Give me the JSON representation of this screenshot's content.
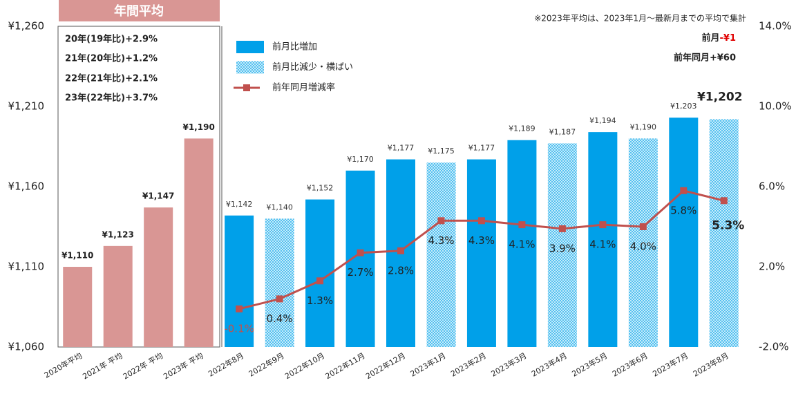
{
  "chart_data": {
    "type": "bar",
    "categories": [
      "2020年平均",
      "2021年 平均",
      "2022年 平均",
      "2023年 平均",
      "2022年8月",
      "2022年9月",
      "2022年10月",
      "2022年11月",
      "2022年12月",
      "2023年1月",
      "2023年2月",
      "2023年3月",
      "2023年4月",
      "2023年5月",
      "2023年6月",
      "2023年7月",
      "2023年8月"
    ],
    "series": [
      {
        "type": "bar",
        "color": "#d99694",
        "values": [
          1110,
          1123,
          1147,
          1190,
          null,
          null,
          null,
          null,
          null,
          null,
          null,
          null,
          null,
          null,
          null,
          null,
          null
        ],
        "value_labels": [
          "¥1,110",
          "¥1,123",
          "¥1,147",
          "¥1,190",
          null,
          null,
          null,
          null,
          null,
          null,
          null,
          null,
          null,
          null,
          null,
          null,
          null
        ]
      },
      {
        "type": "bar",
        "name": "前月比増加",
        "color": "#00a0e9",
        "values": [
          null,
          null,
          null,
          null,
          1142,
          null,
          1152,
          1170,
          1177,
          null,
          1177,
          1189,
          null,
          1194,
          null,
          1203,
          null
        ],
        "value_labels": [
          null,
          null,
          null,
          null,
          "¥1,142",
          null,
          "¥1,152",
          "¥1,170",
          "¥1,177",
          null,
          "¥1,177",
          "¥1,189",
          null,
          "¥1,194",
          null,
          "¥1,203",
          null
        ]
      },
      {
        "type": "bar",
        "name": "前月比減少・横ばい",
        "color": "#00a0e9",
        "pattern": "hatch",
        "values": [
          null,
          null,
          null,
          null,
          null,
          1140,
          null,
          null,
          null,
          1175,
          null,
          null,
          1187,
          null,
          1190,
          null,
          1202
        ],
        "value_labels": [
          null,
          null,
          null,
          null,
          null,
          "¥1,140",
          null,
          null,
          null,
          "¥1,175",
          null,
          null,
          "¥1,187",
          null,
          "¥1,190",
          null,
          "¥1,202"
        ]
      },
      {
        "type": "line",
        "name": "前年同月増減率",
        "color": "#c0504d",
        "axis": "y2",
        "values": [
          null,
          null,
          null,
          null,
          -0.1,
          0.4,
          1.3,
          2.7,
          2.8,
          4.3,
          4.3,
          4.1,
          3.9,
          4.1,
          4.0,
          5.8,
          5.3
        ],
        "value_labels": [
          null,
          null,
          null,
          null,
          "-0.1%",
          "0.4%",
          "1.3%",
          "2.7%",
          "2.8%",
          "4.3%",
          "4.3%",
          "4.1%",
          "3.9%",
          "4.1%",
          "4.0%",
          "5.8%",
          "5.3%"
        ]
      }
    ],
    "ylim": [
      1060,
      1260
    ],
    "yticks": [
      {
        "value": 1060,
        "label": "¥1,060"
      },
      {
        "value": 1110,
        "label": "¥1,110"
      },
      {
        "value": 1160,
        "label": "¥1,160"
      },
      {
        "value": 1210,
        "label": "¥1,210"
      },
      {
        "value": 1260,
        "label": "¥1,260"
      }
    ],
    "y2lim": [
      -2,
      14
    ],
    "y2ticks": [
      {
        "value": -2,
        "label": "-2.0%"
      },
      {
        "value": 2,
        "label": "2.0%"
      },
      {
        "value": 6,
        "label": "6.0%"
      },
      {
        "value": 10,
        "label": "10.0%"
      },
      {
        "value": 14,
        "label": "14.0%"
      }
    ],
    "annotations": {
      "box_title": "年間平均",
      "annual_notes": [
        "20年(19年比)+2.9%",
        "21年(20年比)+1.2%",
        "22年(21年比)+2.1%",
        "23年(22年比)+3.7%"
      ],
      "footnote": "※2023年平均は、2023年1月～最新月までの平均で集計",
      "mom_label": "前月",
      "mom_value": "-¥1",
      "yoy": "前年同月+¥60"
    }
  }
}
